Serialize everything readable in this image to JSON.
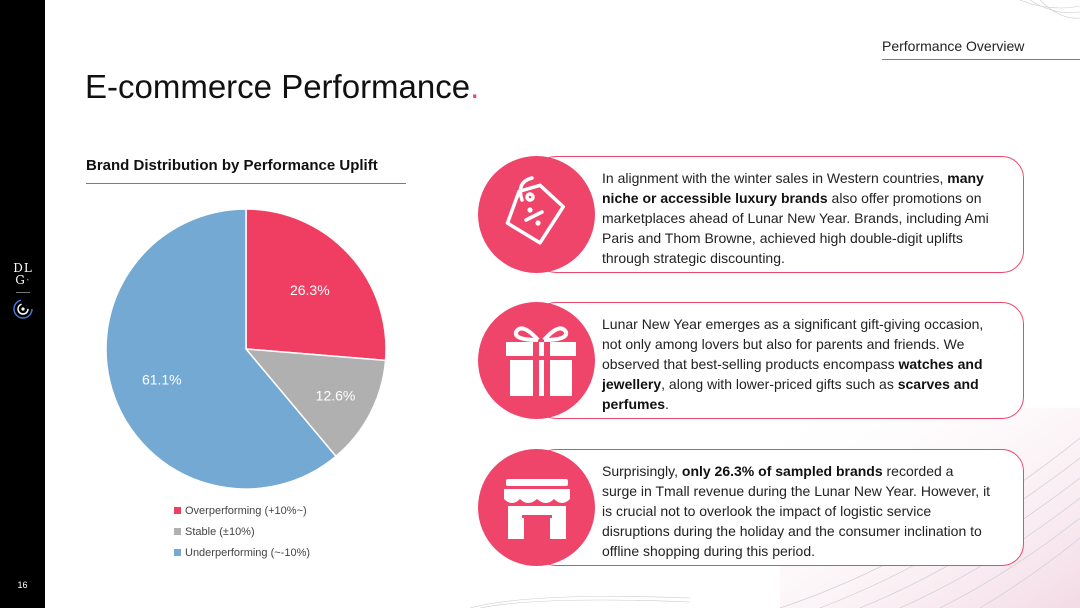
{
  "header": {
    "tag": "Performance Overview",
    "title": "E-commerce Performance",
    "title_dot": "."
  },
  "logo": {
    "line1": "DL",
    "line2": "G",
    "dot": "·"
  },
  "page_number": "16",
  "chart_title": "Brand Distribution by Performance Uplift",
  "chart_data": {
    "type": "pie",
    "title": "Brand Distribution by Performance Uplift",
    "categories": [
      "Overperforming (+10%~)",
      "Stable (±10%)",
      "Underperforming (~-10%)"
    ],
    "values": [
      26.3,
      12.6,
      61.1
    ],
    "labels": [
      "26.3%",
      "12.6%",
      "61.1%"
    ],
    "colors": [
      "#f03e62",
      "#b0b0b0",
      "#74a9d3"
    ],
    "legend": "bottom"
  },
  "cards": [
    {
      "icon": "sale-tag-icon",
      "segments": [
        {
          "t": "In alignment with the winter sales in Western countries, "
        },
        {
          "t": "many niche or accessible luxury brands",
          "b": true
        },
        {
          "t": " also offer promotions on marketplaces ahead of Lunar New Year. Brands, including Ami Paris and Thom Browne, achieved high double-digit uplifts through strategic discounting."
        }
      ]
    },
    {
      "icon": "gift-icon",
      "segments": [
        {
          "t": "Lunar New Year emerges as a significant gift-giving occasion, not only among lovers but also for parents and friends. We observed that best-selling products encompass "
        },
        {
          "t": "watches and jewellery",
          "b": true
        },
        {
          "t": ", along with lower-priced gifts such as "
        },
        {
          "t": "scarves and perfumes",
          "b": true
        },
        {
          "t": "."
        }
      ]
    },
    {
      "icon": "storefront-icon",
      "segments": [
        {
          "t": "Surprisingly, "
        },
        {
          "t": "only 26.3% of sampled brands",
          "b": true
        },
        {
          "t": " recorded a surge in Tmall revenue during the Lunar New Year. However, it is crucial not to overlook the impact of logistic service disruptions during the holiday and the consumer inclination to offline shopping during this period."
        }
      ]
    }
  ]
}
